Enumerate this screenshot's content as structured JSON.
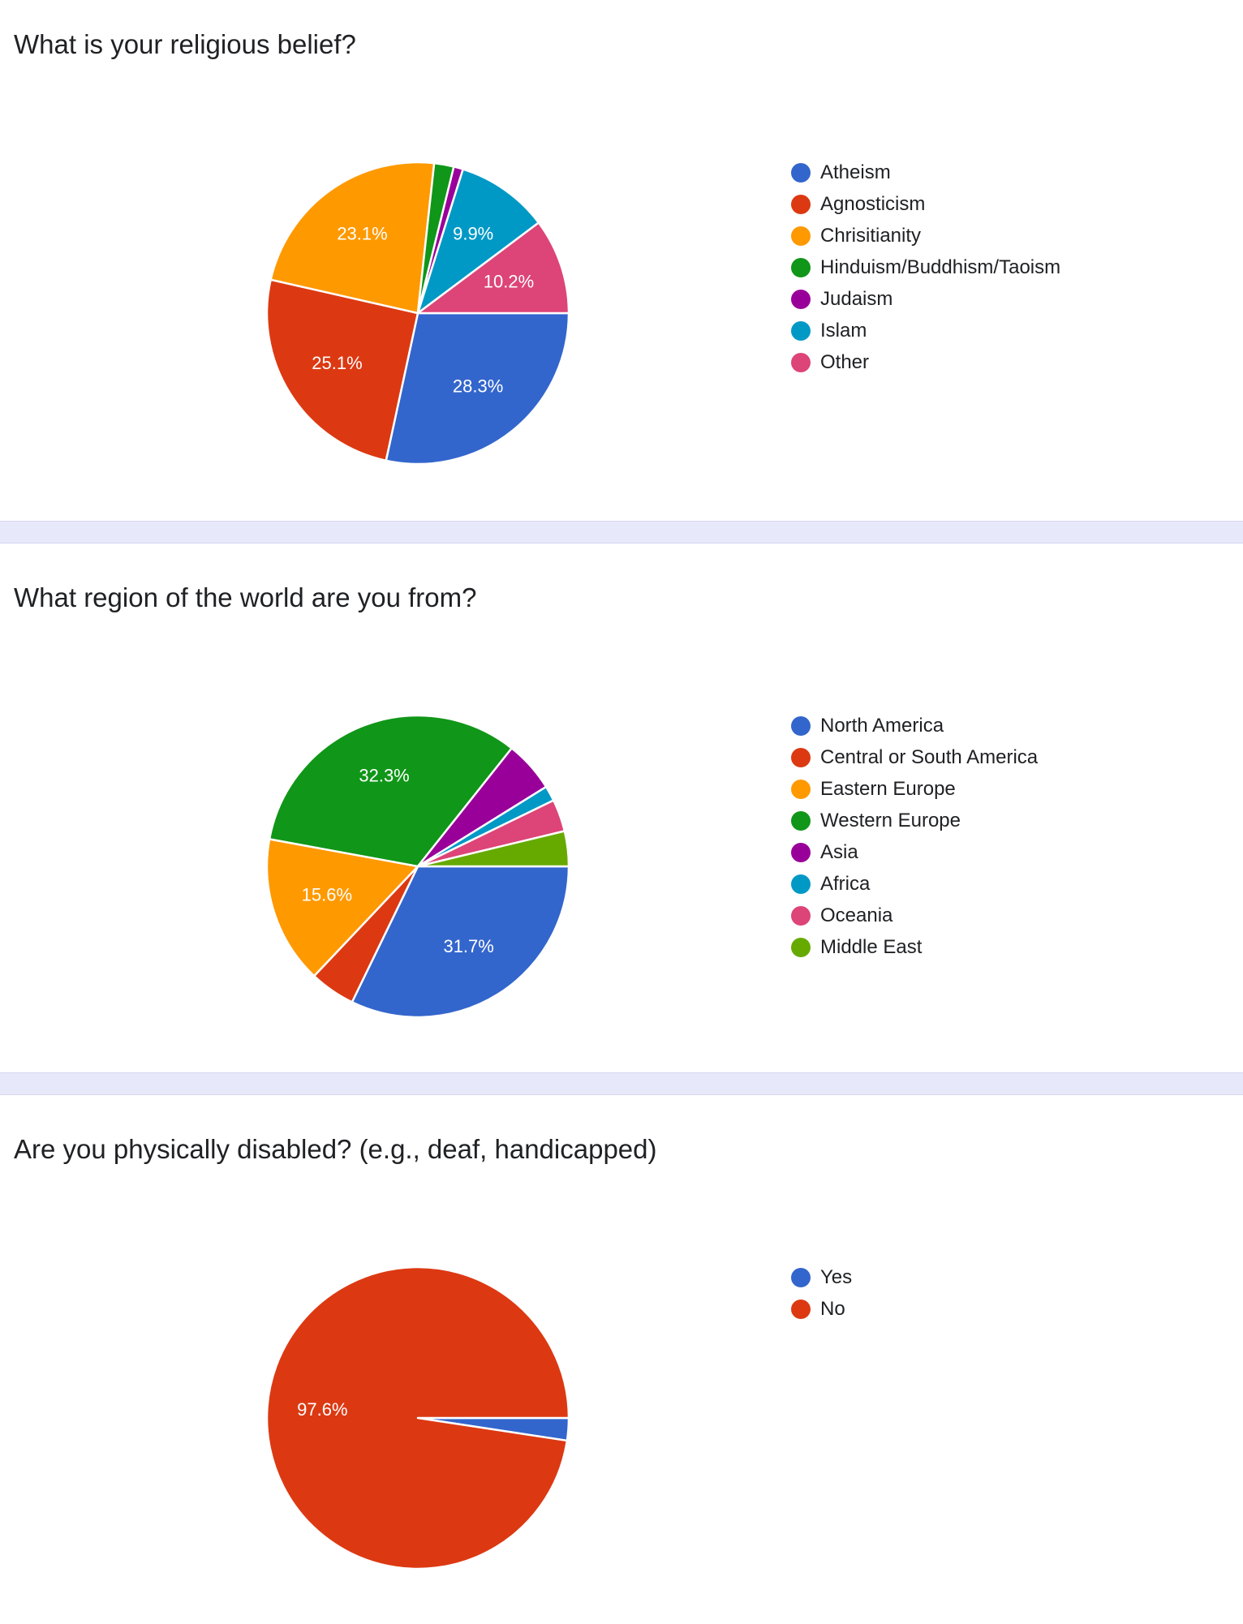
{
  "chart_data": [
    {
      "type": "pie",
      "title": "What is your religious belief?",
      "series": [
        {
          "name": "Atheism",
          "value": 28.3,
          "color": "#3366cc"
        },
        {
          "name": "Agnosticism",
          "value": 25.1,
          "color": "#dc3912"
        },
        {
          "name": "Chrisitianity",
          "value": 23.1,
          "color": "#ff9900"
        },
        {
          "name": "Hinduism/Buddhism/Taoism",
          "value": 2.1,
          "color": "#109618"
        },
        {
          "name": "Judaism",
          "value": 1.0,
          "color": "#990099"
        },
        {
          "name": "Islam",
          "value": 9.9,
          "color": "#0099c6"
        },
        {
          "name": "Other",
          "value": 10.2,
          "color": "#dd4477"
        }
      ],
      "labels": {
        "Atheism": "28.3%",
        "Agnosticism": "25.1%",
        "Chrisitianity": "23.1%",
        "Islam": "9.9%",
        "Other": "10.2%"
      },
      "legend_position": "right"
    },
    {
      "type": "pie",
      "title": "What region of the world are you from?",
      "series": [
        {
          "name": "North America",
          "value": 31.7,
          "color": "#3366cc"
        },
        {
          "name": "Central or South America",
          "value": 4.8,
          "color": "#dc3912"
        },
        {
          "name": "Eastern Europe",
          "value": 15.6,
          "color": "#ff9900"
        },
        {
          "name": "Western Europe",
          "value": 32.3,
          "color": "#109618"
        },
        {
          "name": "Asia",
          "value": 5.4,
          "color": "#990099"
        },
        {
          "name": "Africa",
          "value": 1.6,
          "color": "#0099c6"
        },
        {
          "name": "Oceania",
          "value": 3.4,
          "color": "#dd4477"
        },
        {
          "name": "Middle East",
          "value": 3.7,
          "color": "#66aa00"
        }
      ],
      "labels": {
        "North America": "31.7%",
        "Eastern Europe": "15.6%",
        "Western Europe": "32.3%"
      },
      "legend_position": "right"
    },
    {
      "type": "pie",
      "title": "Are you physically disabled? (e.g., deaf, handicapped)",
      "series": [
        {
          "name": "Yes",
          "value": 2.4,
          "color": "#3366cc"
        },
        {
          "name": "No",
          "value": 97.6,
          "color": "#dc3912"
        }
      ],
      "labels": {
        "No": "97.6%"
      },
      "legend_position": "right"
    }
  ]
}
